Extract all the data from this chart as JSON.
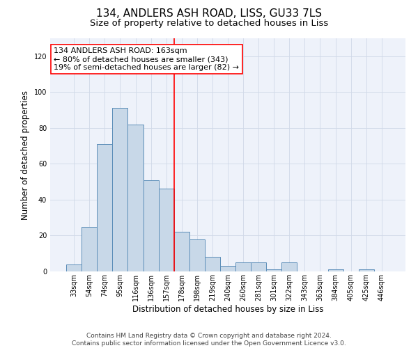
{
  "title": "134, ANDLERS ASH ROAD, LISS, GU33 7LS",
  "subtitle": "Size of property relative to detached houses in Liss",
  "xlabel": "Distribution of detached houses by size in Liss",
  "ylabel": "Number of detached properties",
  "footer_line1": "Contains HM Land Registry data © Crown copyright and database right 2024.",
  "footer_line2": "Contains public sector information licensed under the Open Government Licence v3.0.",
  "categories": [
    "33sqm",
    "54sqm",
    "74sqm",
    "95sqm",
    "116sqm",
    "136sqm",
    "157sqm",
    "178sqm",
    "198sqm",
    "219sqm",
    "240sqm",
    "260sqm",
    "281sqm",
    "301sqm",
    "322sqm",
    "343sqm",
    "363sqm",
    "384sqm",
    "405sqm",
    "425sqm",
    "446sqm"
  ],
  "values": [
    4,
    25,
    71,
    91,
    82,
    51,
    46,
    22,
    18,
    8,
    3,
    5,
    5,
    1,
    5,
    0,
    0,
    1,
    0,
    1,
    0
  ],
  "bar_color": "#c8d8e8",
  "bar_edge_color": "#5b8db8",
  "red_line_index": 6.5,
  "annotation_text_line1": "134 ANDLERS ASH ROAD: 163sqm",
  "annotation_text_line2": "← 80% of detached houses are smaller (343)",
  "annotation_text_line3": "19% of semi-detached houses are larger (82) →",
  "ylim": [
    0,
    130
  ],
  "yticks": [
    0,
    20,
    40,
    60,
    80,
    100,
    120
  ],
  "background_color": "#eef2fa",
  "grid_color": "#d0d8e8",
  "title_fontsize": 11,
  "subtitle_fontsize": 9.5,
  "axis_label_fontsize": 8.5,
  "tick_fontsize": 7,
  "annotation_fontsize": 8,
  "footer_fontsize": 6.5
}
